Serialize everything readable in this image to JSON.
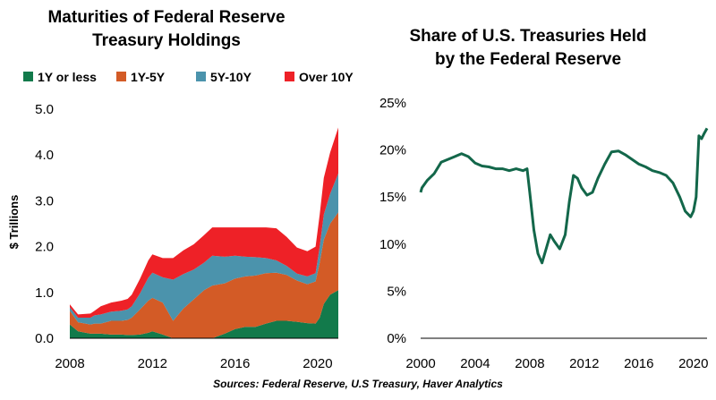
{
  "source": "Sources: Federal Reserve, U.S Treasury, Haver Analytics",
  "chart_data": [
    {
      "type": "area",
      "stacked": true,
      "title_lines": [
        "Maturities of Federal Reserve",
        "Treasury Holdings"
      ],
      "ylabel": "$ Trillions",
      "xlabel": "",
      "xlim": [
        2008,
        2021
      ],
      "ylim": [
        0,
        5
      ],
      "xticks": [
        2008,
        2012,
        2016,
        2020
      ],
      "yticks": [
        0,
        1,
        2,
        3,
        4,
        5
      ],
      "xtick_labels": [
        "2008",
        "2012",
        "2016",
        "2020"
      ],
      "ytick_labels": [
        "0.0",
        "1.0",
        "2.0",
        "3.0",
        "4.0",
        "5.0"
      ],
      "legend_position": "top",
      "grid": false,
      "x": [
        2008.0,
        2008.4,
        2009.0,
        2009.2,
        2009.5,
        2010.0,
        2010.5,
        2010.8,
        2011.0,
        2011.4,
        2011.8,
        2012.0,
        2012.5,
        2013.0,
        2013.5,
        2014.0,
        2014.5,
        2014.9,
        2015.5,
        2016.0,
        2016.5,
        2017.0,
        2017.5,
        2018.0,
        2018.5,
        2019.0,
        2019.5,
        2019.9,
        2020.1,
        2020.3,
        2020.6,
        2021.0
      ],
      "series": [
        {
          "name": "1Y or less",
          "color": "#127a4b",
          "values": [
            0.3,
            0.15,
            0.1,
            0.1,
            0.1,
            0.08,
            0.08,
            0.07,
            0.07,
            0.08,
            0.12,
            0.15,
            0.08,
            0.0,
            0.0,
            0.0,
            0.0,
            0.0,
            0.1,
            0.2,
            0.25,
            0.25,
            0.32,
            0.38,
            0.38,
            0.36,
            0.33,
            0.32,
            0.45,
            0.75,
            0.95,
            1.05
          ]
        },
        {
          "name": "1Y-5Y",
          "color": "#d35b26",
          "values": [
            0.3,
            0.2,
            0.2,
            0.22,
            0.22,
            0.3,
            0.3,
            0.33,
            0.38,
            0.55,
            0.7,
            0.73,
            0.7,
            0.38,
            0.65,
            0.85,
            1.05,
            1.15,
            1.1,
            1.1,
            1.1,
            1.12,
            1.1,
            1.05,
            1.0,
            0.9,
            0.85,
            0.92,
            1.2,
            1.4,
            1.55,
            1.7
          ]
        },
        {
          "name": "5Y-10Y",
          "color": "#4b93ac",
          "values": [
            0.08,
            0.1,
            0.15,
            0.18,
            0.2,
            0.2,
            0.22,
            0.23,
            0.25,
            0.35,
            0.5,
            0.55,
            0.55,
            0.9,
            0.75,
            0.65,
            0.6,
            0.65,
            0.58,
            0.5,
            0.43,
            0.4,
            0.33,
            0.27,
            0.2,
            0.15,
            0.17,
            0.18,
            0.35,
            0.55,
            0.65,
            0.85
          ]
        },
        {
          "name": "Over 10Y",
          "color": "#ee2127",
          "values": [
            0.06,
            0.07,
            0.09,
            0.1,
            0.18,
            0.2,
            0.22,
            0.23,
            0.25,
            0.32,
            0.38,
            0.4,
            0.42,
            0.47,
            0.52,
            0.55,
            0.6,
            0.62,
            0.64,
            0.62,
            0.64,
            0.65,
            0.67,
            0.7,
            0.63,
            0.57,
            0.55,
            0.58,
            0.7,
            0.8,
            0.9,
            1.0
          ]
        }
      ]
    },
    {
      "type": "line",
      "title_lines": [
        "Share of U.S. Treasuries Held",
        "by the Federal Reserve"
      ],
      "xlabel": "",
      "ylabel": "",
      "xlim": [
        2000,
        2021
      ],
      "ylim": [
        0,
        25
      ],
      "xticks": [
        2000,
        2004,
        2008,
        2012,
        2016,
        2020
      ],
      "yticks": [
        0,
        5,
        10,
        15,
        20,
        25
      ],
      "xtick_labels": [
        "2000",
        "2004",
        "2008",
        "2012",
        "2016",
        "2020"
      ],
      "ytick_labels": [
        "0%",
        "5%",
        "10%",
        "15%",
        "20%",
        "25%"
      ],
      "grid": false,
      "series": [
        {
          "name": "",
          "color": "#13674a",
          "x": [
            2000.0,
            2000.1,
            2000.5,
            2001.0,
            2001.5,
            2002.0,
            2002.5,
            2003.0,
            2003.5,
            2004.0,
            2004.5,
            2005.0,
            2005.5,
            2006.0,
            2006.5,
            2007.0,
            2007.5,
            2007.8,
            2008.0,
            2008.3,
            2008.6,
            2008.9,
            2009.2,
            2009.5,
            2009.8,
            2010.2,
            2010.6,
            2010.9,
            2011.2,
            2011.5,
            2011.8,
            2012.2,
            2012.6,
            2013.0,
            2013.5,
            2014.0,
            2014.5,
            2015.0,
            2015.5,
            2016.0,
            2016.5,
            2017.0,
            2017.5,
            2018.0,
            2018.5,
            2019.0,
            2019.4,
            2019.8,
            2020.0,
            2020.2,
            2020.4,
            2020.6,
            2020.8,
            2021.0
          ],
          "y": [
            15.5,
            16.0,
            16.8,
            17.5,
            18.7,
            19.0,
            19.3,
            19.6,
            19.3,
            18.6,
            18.3,
            18.2,
            18.0,
            18.0,
            17.8,
            18.0,
            17.8,
            18.0,
            15.5,
            11.5,
            9.0,
            8.0,
            9.5,
            11.0,
            10.3,
            9.5,
            11.0,
            14.5,
            17.3,
            17.0,
            16.0,
            15.2,
            15.5,
            17.0,
            18.5,
            19.8,
            19.9,
            19.5,
            19.0,
            18.5,
            18.2,
            17.8,
            17.6,
            17.3,
            16.5,
            15.0,
            13.5,
            12.9,
            13.5,
            15.0,
            21.5,
            21.2,
            21.8,
            22.3
          ]
        }
      ]
    }
  ]
}
